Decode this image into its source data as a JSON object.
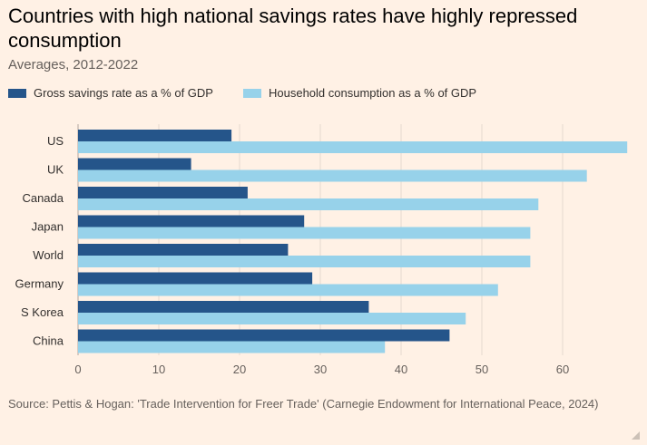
{
  "title": "Countries with high national savings rates have highly repressed consumption",
  "subtitle": "Averages, 2012-2022",
  "source": "Source: Pettis & Hogan: 'Trade Intervention for Freer Trade' (Carnegie Endowment for International Peace, 2024)",
  "colors": {
    "background": "#fff1e5",
    "savings": "#25558a",
    "consumption": "#97d2ea",
    "grid": "#e6d9ce"
  },
  "chart_data": {
    "type": "bar",
    "orientation": "horizontal",
    "categories": [
      "US",
      "UK",
      "Canada",
      "Japan",
      "World",
      "Germany",
      "S Korea",
      "China"
    ],
    "series": [
      {
        "name": "Gross savings rate as a % of GDP",
        "values": [
          19,
          14,
          21,
          28,
          26,
          29,
          36,
          46
        ]
      },
      {
        "name": "Household consumption as a % of GDP",
        "values": [
          68,
          63,
          57,
          56,
          56,
          52,
          48,
          38
        ]
      }
    ],
    "x_ticks": [
      0,
      10,
      20,
      30,
      40,
      50,
      60
    ],
    "xlim": [
      0,
      68
    ],
    "grid": true,
    "legend_position": "top-left"
  }
}
